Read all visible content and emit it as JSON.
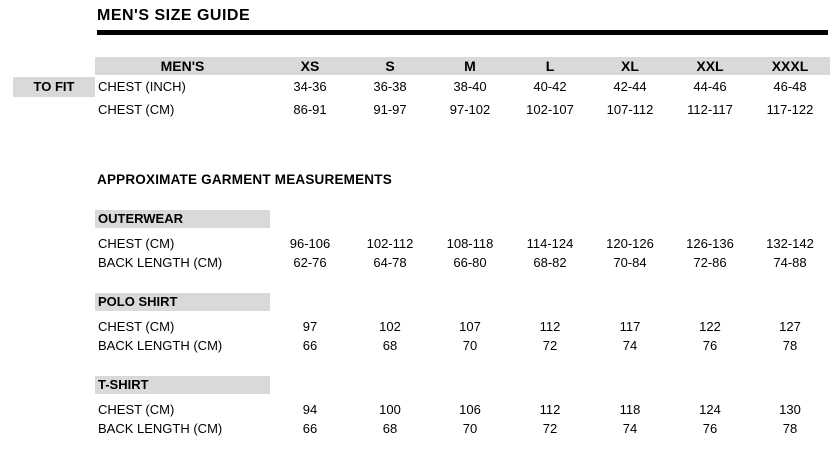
{
  "page": {
    "title": "MEN'S SIZE GUIDE"
  },
  "colors": {
    "highlight_gray": "#d9d9d9",
    "text": "#000000",
    "rule": "#000000"
  },
  "fit_table": {
    "side_label": "TO FIT",
    "header": {
      "label_col": "MEN'S",
      "sizes": [
        "XS",
        "S",
        "M",
        "L",
        "XL",
        "XXL",
        "XXXL"
      ]
    },
    "rows": [
      {
        "label": "CHEST (INCH)",
        "values": [
          "34-36",
          "36-38",
          "38-40",
          "40-42",
          "42-44",
          "44-46",
          "46-48"
        ]
      },
      {
        "label": "CHEST (CM)",
        "values": [
          "86-91",
          "91-97",
          "97-102",
          "102-107",
          "107-112",
          "112-117",
          "117-122"
        ]
      }
    ]
  },
  "garment": {
    "heading": "APPROXIMATE GARMENT MEASUREMENTS",
    "groups": [
      {
        "name": "OUTERWEAR",
        "rows": [
          {
            "label": "CHEST (CM)",
            "values": [
              "96-106",
              "102-112",
              "108-118",
              "114-124",
              "120-126",
              "126-136",
              "132-142"
            ]
          },
          {
            "label": "BACK LENGTH (CM)",
            "values": [
              "62-76",
              "64-78",
              "66-80",
              "68-82",
              "70-84",
              "72-86",
              "74-88"
            ]
          }
        ]
      },
      {
        "name": "POLO SHIRT",
        "rows": [
          {
            "label": "CHEST (CM)",
            "values": [
              "97",
              "102",
              "107",
              "112",
              "117",
              "122",
              "127"
            ]
          },
          {
            "label": "BACK LENGTH (CM)",
            "values": [
              "66",
              "68",
              "70",
              "72",
              "74",
              "76",
              "78"
            ]
          }
        ]
      },
      {
        "name": "T-SHIRT",
        "rows": [
          {
            "label": "CHEST (CM)",
            "values": [
              "94",
              "100",
              "106",
              "112",
              "118",
              "124",
              "130"
            ]
          },
          {
            "label": "BACK LENGTH (CM)",
            "values": [
              "66",
              "68",
              "70",
              "72",
              "74",
              "76",
              "78"
            ]
          }
        ]
      }
    ]
  }
}
